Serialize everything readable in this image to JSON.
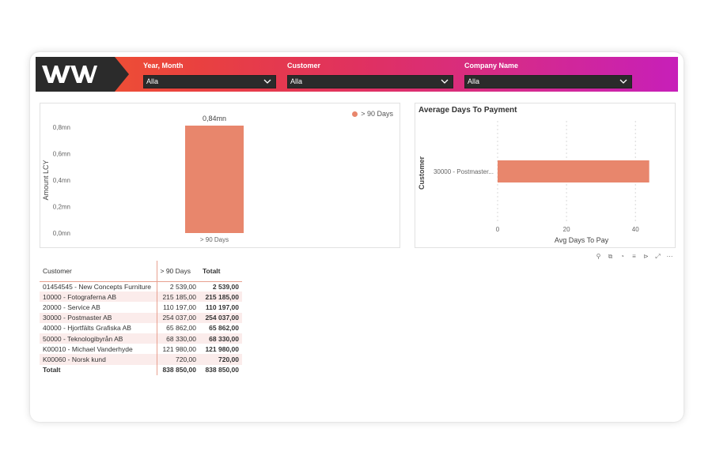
{
  "colors": {
    "accent": "#e8866c",
    "header_start": "#f25a2d",
    "header_end": "#c71fb9",
    "dark": "#2b2b2b"
  },
  "slicers": [
    {
      "title": "Year, Month",
      "value": "Alla"
    },
    {
      "title": "Customer",
      "value": "Alla"
    },
    {
      "title": "Company Name",
      "value": "Alla"
    }
  ],
  "chart_data": [
    {
      "type": "bar",
      "categories": [
        "> 90 Days"
      ],
      "values": [
        0.84
      ],
      "data_labels": [
        "0,84mn"
      ],
      "ylabel": "Amount LCY",
      "xlabel": "",
      "ylim": [
        0,
        0.8
      ],
      "yticks": [
        "0,0mn",
        "0,2mn",
        "0,4mn",
        "0,6mn",
        "0,8mn"
      ],
      "legend": [
        "> 90 Days"
      ],
      "legend_position": "top-right",
      "color": "#e8866c"
    },
    {
      "type": "bar",
      "orientation": "horizontal",
      "title": "Average Days To Payment",
      "categories": [
        "30000 - Postmaster..."
      ],
      "values": [
        44
      ],
      "xlabel": "Avg Days To Pay",
      "ylabel": "Customer",
      "xlim": [
        0,
        45
      ],
      "xticks": [
        "0",
        "20",
        "40"
      ],
      "color": "#e8866c"
    }
  ],
  "toolbar_icons": [
    "pin-icon",
    "copy-icon",
    "bell-icon",
    "filter-icon",
    "focus-mode-icon",
    "expand-icon",
    "more-options-icon"
  ],
  "table": {
    "headers": [
      "Customer",
      "> 90 Days",
      "Totalt"
    ],
    "rows": [
      [
        "01454545 - New Concepts Furniture",
        "2 539,00",
        "2 539,00"
      ],
      [
        "10000 - Fotograferna AB",
        "215 185,00",
        "215 185,00"
      ],
      [
        "20000 - Service AB",
        "110 197,00",
        "110 197,00"
      ],
      [
        "30000 - Postmaster AB",
        "254 037,00",
        "254 037,00"
      ],
      [
        "40000 - Hjortfälts Grafiska AB",
        "65 862,00",
        "65 862,00"
      ],
      [
        "50000 - Teknologibyrån AB",
        "68 330,00",
        "68 330,00"
      ],
      [
        "K00010 - Michael Vanderhyde",
        "121 980,00",
        "121 980,00"
      ],
      [
        "K00060 - Norsk kund",
        "720,00",
        "720,00"
      ]
    ],
    "total": [
      "Totalt",
      "838 850,00",
      "838 850,00"
    ]
  }
}
